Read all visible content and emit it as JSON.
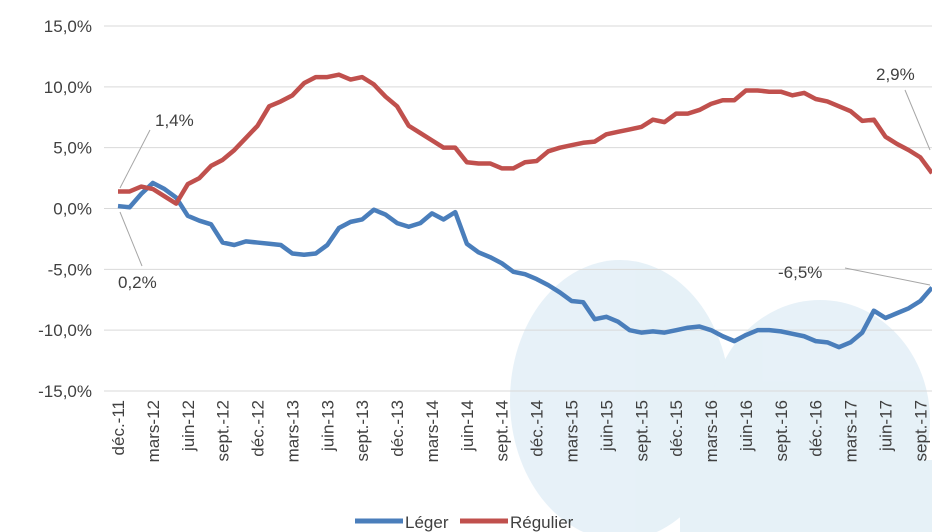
{
  "chart_data": {
    "type": "line",
    "categories": [
      "déc.-11",
      null,
      null,
      "mars-12",
      null,
      null,
      "juin-12",
      null,
      null,
      "sept.-12",
      null,
      null,
      "déc.-12",
      null,
      null,
      "mars-13",
      null,
      null,
      "juin-13",
      null,
      null,
      "sept.-13",
      null,
      null,
      "déc.-13",
      null,
      null,
      "mars-14",
      null,
      null,
      "juin-14",
      null,
      null,
      "sept.-14",
      null,
      null,
      "déc.-14",
      null,
      null,
      "mars-15",
      null,
      null,
      "juin-15",
      null,
      null,
      "sept.-15",
      null,
      null,
      "déc.-15",
      null,
      null,
      "mars-16",
      null,
      null,
      "juin-16",
      null,
      null,
      "sept.-16",
      null,
      null,
      "déc.-16",
      null,
      null,
      "mars-17",
      null,
      null,
      "juin-17",
      null,
      null,
      "sept.-17",
      null
    ],
    "series": [
      {
        "name": "Léger",
        "color": "#4a7ebb",
        "values": [
          0.2,
          0.1,
          1.2,
          2.1,
          1.6,
          0.9,
          -0.6,
          -1.0,
          -1.3,
          -2.8,
          -3.0,
          -2.7,
          -2.8,
          -2.9,
          -3.0,
          -3.7,
          -3.8,
          -3.7,
          -3.0,
          -1.6,
          -1.1,
          -0.9,
          -0.1,
          -0.5,
          -1.2,
          -1.5,
          -1.2,
          -0.4,
          -0.9,
          -0.3,
          -2.9,
          -3.6,
          -4.0,
          -4.5,
          -5.2,
          -5.4,
          -5.8,
          -6.3,
          -6.9,
          -7.6,
          -7.7,
          -9.1,
          -8.9,
          -9.3,
          -10.0,
          -10.2,
          -10.1,
          -10.2,
          -10.0,
          -9.8,
          -9.7,
          -10.0,
          -10.5,
          -10.9,
          -10.4,
          -10.0,
          -10.0,
          -10.1,
          -10.3,
          -10.5,
          -10.9,
          -11.0,
          -11.4,
          -11.0,
          -10.2,
          -8.4,
          -9.0,
          -8.6,
          -8.2,
          -7.6,
          -6.5
        ]
      },
      {
        "name": "Régulier",
        "color": "#c0504d",
        "values": [
          1.4,
          1.4,
          1.8,
          1.6,
          1.0,
          0.4,
          2.0,
          2.5,
          3.5,
          4.0,
          4.8,
          5.8,
          6.8,
          8.4,
          8.8,
          9.3,
          10.3,
          10.8,
          10.8,
          11.0,
          10.6,
          10.8,
          10.2,
          9.2,
          8.4,
          6.8,
          6.2,
          5.6,
          5.0,
          5.0,
          3.8,
          3.7,
          3.7,
          3.3,
          3.3,
          3.8,
          3.9,
          4.7,
          5.0,
          5.2,
          5.4,
          5.5,
          6.1,
          6.3,
          6.5,
          6.7,
          7.3,
          7.1,
          7.8,
          7.8,
          8.1,
          8.6,
          8.9,
          8.9,
          9.7,
          9.7,
          9.6,
          9.6,
          9.3,
          9.5,
          9.0,
          8.8,
          8.4,
          8.0,
          7.2,
          7.3,
          5.9,
          5.3,
          4.8,
          4.2,
          2.9
        ]
      }
    ],
    "annotations": [
      {
        "label": "1,4%"
      },
      {
        "label": "0,2%"
      },
      {
        "label": "2,9%"
      },
      {
        "label": "-6,5%"
      }
    ],
    "ylim": [
      -15,
      15
    ],
    "yticks": [
      {
        "value": -15,
        "label": "-15,0%"
      },
      {
        "value": -10,
        "label": "-10,0%"
      },
      {
        "value": -5,
        "label": "-5,0%"
      },
      {
        "value": 0,
        "label": "0,0%"
      },
      {
        "value": 5,
        "label": "5,0%"
      },
      {
        "value": 10,
        "label": "10,0%"
      },
      {
        "value": 15,
        "label": "15,0%"
      }
    ],
    "grid": true,
    "legend": "bottom"
  }
}
